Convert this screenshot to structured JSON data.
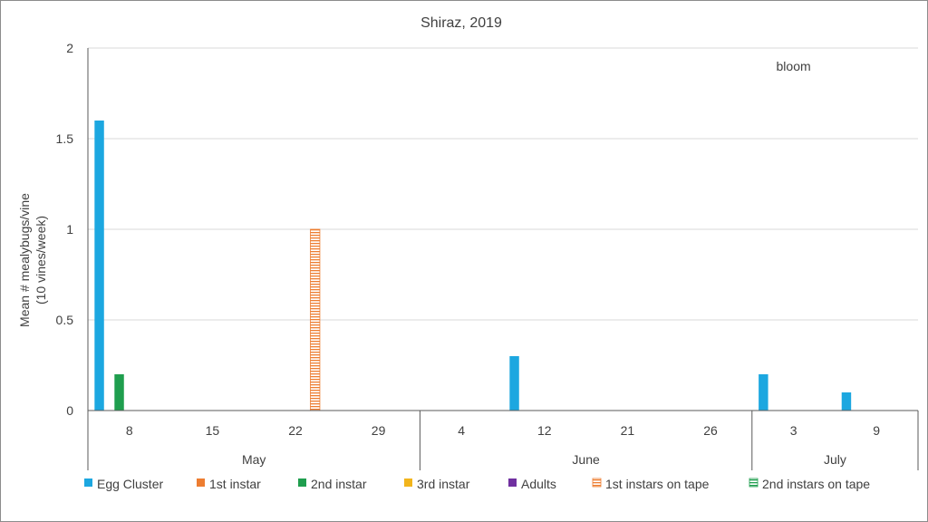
{
  "chart_data": {
    "type": "bar",
    "title": "Shiraz, 2019",
    "ylabel": [
      "Mean # mealybugs/vine",
      "(10 vines/week)"
    ],
    "xlabel": "",
    "ylim": [
      0,
      2
    ],
    "yticks": [
      0,
      0.5,
      1,
      1.5,
      2
    ],
    "ytick_labels": [
      "0",
      "0.5",
      "1",
      "1.5",
      "2"
    ],
    "grid": true,
    "legend_position": "bottom",
    "categories": [
      "8",
      "15",
      "22",
      "29",
      "4",
      "12",
      "21",
      "26",
      "3",
      "9"
    ],
    "groups": [
      {
        "label": "May",
        "count": 4
      },
      {
        "label": "June",
        "count": 4
      },
      {
        "label": "July",
        "count": 2
      }
    ],
    "series": [
      {
        "name": "Egg Cluster",
        "color": "#1ca7e0",
        "pattern": "solid",
        "values": [
          1.6,
          0,
          0,
          0,
          0,
          0.3,
          0,
          0,
          0.2,
          0.1
        ]
      },
      {
        "name": "1st instar",
        "color": "#ed7d31",
        "pattern": "solid",
        "values": [
          0,
          0,
          0,
          0,
          0,
          0,
          0,
          0,
          0,
          0
        ]
      },
      {
        "name": "2nd instar",
        "color": "#1f9e4e",
        "pattern": "solid",
        "values": [
          0.2,
          0,
          0,
          0,
          0,
          0,
          0,
          0,
          0,
          0
        ]
      },
      {
        "name": "3rd instar",
        "color": "#f2b51c",
        "pattern": "solid",
        "values": [
          0,
          0,
          0,
          0,
          0,
          0,
          0,
          0,
          0,
          0
        ]
      },
      {
        "name": "Adults",
        "color": "#7030a0",
        "pattern": "solid",
        "values": [
          0,
          0,
          0,
          0,
          0,
          0,
          0,
          0,
          0,
          0
        ]
      },
      {
        "name": "1st instars on tape",
        "color": "#ed7d31",
        "pattern": "hstripes",
        "values": [
          0,
          0,
          1,
          0,
          0,
          0,
          0,
          0,
          0,
          0
        ]
      },
      {
        "name": "2nd instars on tape",
        "color": "#1f9e4e",
        "pattern": "hstripes",
        "values": [
          0,
          0,
          0,
          0,
          0,
          0,
          0,
          0,
          0,
          0
        ]
      }
    ],
    "annotations": [
      {
        "text": "bloom",
        "x_category_index": 8,
        "y": 1.9
      }
    ]
  }
}
